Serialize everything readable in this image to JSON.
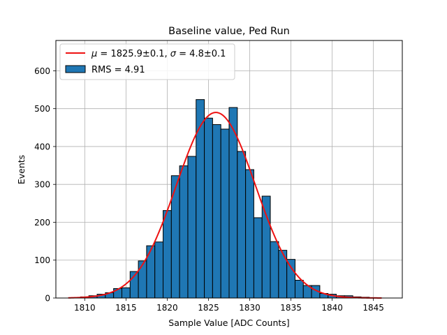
{
  "chart_data": {
    "type": "bar",
    "title": "Baseline value, Ped Run",
    "xlabel": "Sample Value [ADC Counts]",
    "ylabel": "Events",
    "xlim": [
      1806.5,
      1848.5
    ],
    "ylim": [
      0,
      680
    ],
    "xticks": [
      1810,
      1815,
      1820,
      1825,
      1830,
      1835,
      1840,
      1845
    ],
    "yticks": [
      0,
      100,
      200,
      300,
      400,
      500,
      600
    ],
    "grid": true,
    "legend_position": "top-left",
    "bar_color": "#1f77b4",
    "bar_edge_color": "#000000",
    "fit_color": "#ee1111",
    "histogram": {
      "name": "RMS = 4.91",
      "bin_width": 1,
      "bins": [
        {
          "x": 1808,
          "count": 0
        },
        {
          "x": 1809,
          "count": 1
        },
        {
          "x": 1810,
          "count": 3
        },
        {
          "x": 1811,
          "count": 6
        },
        {
          "x": 1812,
          "count": 10
        },
        {
          "x": 1813,
          "count": 14
        },
        {
          "x": 1814,
          "count": 25
        },
        {
          "x": 1815,
          "count": 27
        },
        {
          "x": 1816,
          "count": 70
        },
        {
          "x": 1817,
          "count": 98
        },
        {
          "x": 1818,
          "count": 138
        },
        {
          "x": 1819,
          "count": 148
        },
        {
          "x": 1820,
          "count": 231
        },
        {
          "x": 1821,
          "count": 323
        },
        {
          "x": 1822,
          "count": 349
        },
        {
          "x": 1823,
          "count": 374
        },
        {
          "x": 1824,
          "count": 524
        },
        {
          "x": 1825,
          "count": 475
        },
        {
          "x": 1826,
          "count": 458
        },
        {
          "x": 1827,
          "count": 446
        },
        {
          "x": 1828,
          "count": 503
        },
        {
          "x": 1829,
          "count": 387
        },
        {
          "x": 1830,
          "count": 339
        },
        {
          "x": 1831,
          "count": 212
        },
        {
          "x": 1832,
          "count": 269
        },
        {
          "x": 1833,
          "count": 149
        },
        {
          "x": 1834,
          "count": 126
        },
        {
          "x": 1835,
          "count": 102
        },
        {
          "x": 1836,
          "count": 47
        },
        {
          "x": 1837,
          "count": 33
        },
        {
          "x": 1838,
          "count": 33
        },
        {
          "x": 1839,
          "count": 12
        },
        {
          "x": 1840,
          "count": 10
        },
        {
          "x": 1841,
          "count": 6
        },
        {
          "x": 1842,
          "count": 6
        },
        {
          "x": 1843,
          "count": 3
        },
        {
          "x": 1844,
          "count": 2
        },
        {
          "x": 1845,
          "count": 1
        }
      ]
    },
    "fit": {
      "name_mu_label": "μ",
      "name_mu_value": " = 1825.9±0.1, ",
      "name_sigma_label": "σ",
      "name_sigma_value": " = 4.8±0.1",
      "mu": 1825.9,
      "sigma": 4.8,
      "amplitude": 490,
      "x_range": [
        1808,
        1846
      ]
    }
  }
}
